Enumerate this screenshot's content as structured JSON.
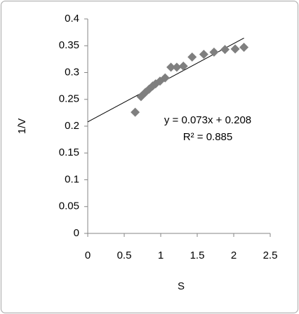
{
  "chart_data": {
    "type": "scatter",
    "x_label": "S",
    "y_label": "1/V",
    "x": [
      0.65,
      0.73,
      0.79,
      0.84,
      0.89,
      0.93,
      0.99,
      1.06,
      1.14,
      1.22,
      1.31,
      1.43,
      1.59,
      1.73,
      1.88,
      2.02,
      2.14
    ],
    "values": [
      0.226,
      0.255,
      0.263,
      0.269,
      0.275,
      0.279,
      0.284,
      0.29,
      0.31,
      0.31,
      0.312,
      0.329,
      0.334,
      0.338,
      0.343,
      0.344,
      0.347
    ],
    "color": "#7f7f7f",
    "xlim": [
      0,
      2.5
    ],
    "xticks": [
      0,
      0.5,
      1,
      1.5,
      2,
      2.5
    ],
    "ylim": [
      0,
      0.4
    ],
    "yticks": [
      0,
      0.05,
      0.1,
      0.15,
      0.2,
      0.25,
      0.3,
      0.35,
      0.4
    ],
    "grid": false,
    "trendline": {
      "slope": 0.073,
      "intercept": 0.208,
      "label": "y = 0.073x + 0.208",
      "r2_label": "R² = 0.885"
    }
  }
}
